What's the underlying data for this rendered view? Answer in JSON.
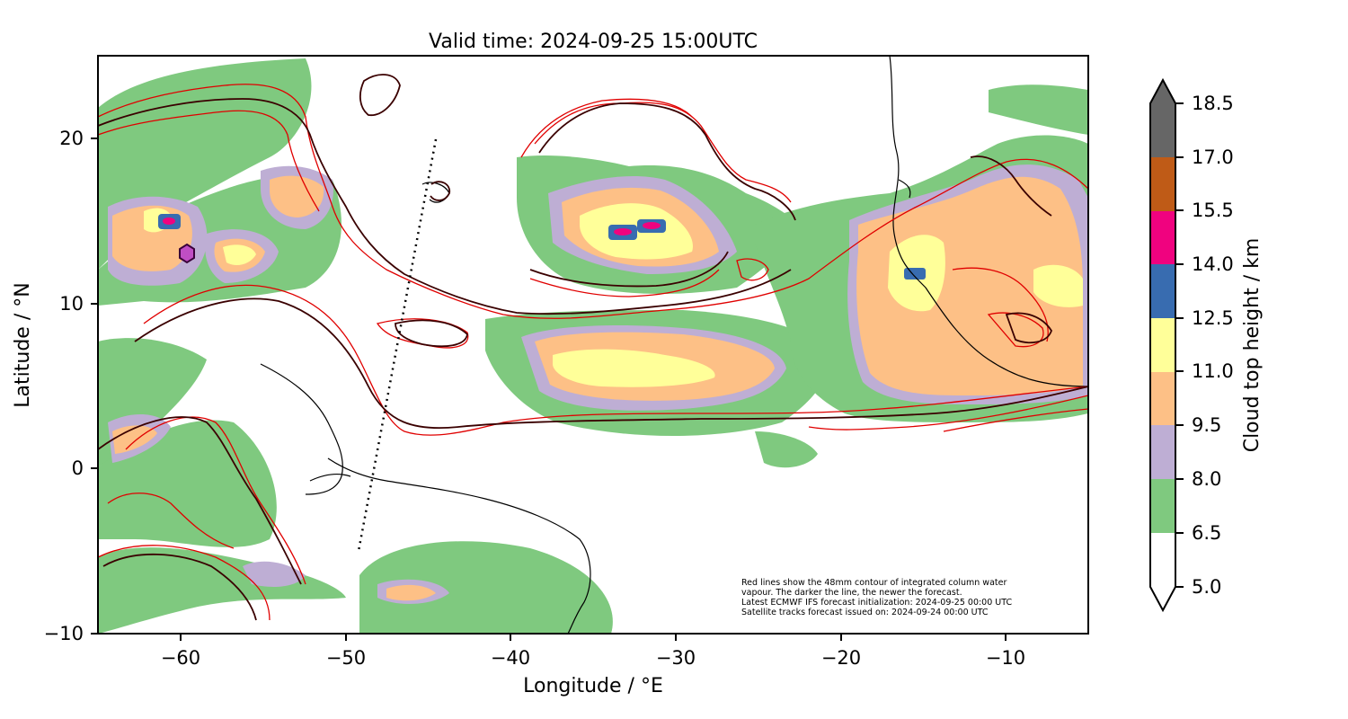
{
  "title": "Valid time: 2024-09-25 15:00UTC",
  "xlabel": "Longitude / °E",
  "ylabel": "Latitude / °N",
  "xticks": [
    -60,
    -50,
    -40,
    -30,
    -20,
    -10
  ],
  "yticks": [
    20,
    10,
    0,
    -10
  ],
  "xrange": [
    -65,
    -5
  ],
  "yrange": [
    -10,
    25
  ],
  "colorbar": {
    "label": "Cloud top height / km",
    "levels": [
      "18.5",
      "17.0",
      "15.5",
      "14.0",
      "12.5",
      "11.0",
      "9.5",
      "8.0",
      "6.5",
      "5.0"
    ],
    "colors": [
      "#ffffff",
      "#7fc97f",
      "#beaed4",
      "#fdc086",
      "#ffff99",
      "#386cb0",
      "#f0027f",
      "#bf5b17",
      "#666666"
    ],
    "extend": "both"
  },
  "annotation": [
    "Red lines show the 48mm contour of integrated column water",
    "vapour. The darker the line, the newer the forecast.",
    "Latest ECMWF IFS forecast initialization: 2024-09-25 00:00 UTC",
    "Satellite tracks forecast issued on: 2024-09-24 00:00 UTC"
  ],
  "satellite_track": {
    "start": [
      -44.5,
      20
    ],
    "end": [
      -49.3,
      -5
    ]
  },
  "colors": {
    "contour_red": "#e00000",
    "contour_dark": "#3a0000",
    "coast": "#000000"
  }
}
